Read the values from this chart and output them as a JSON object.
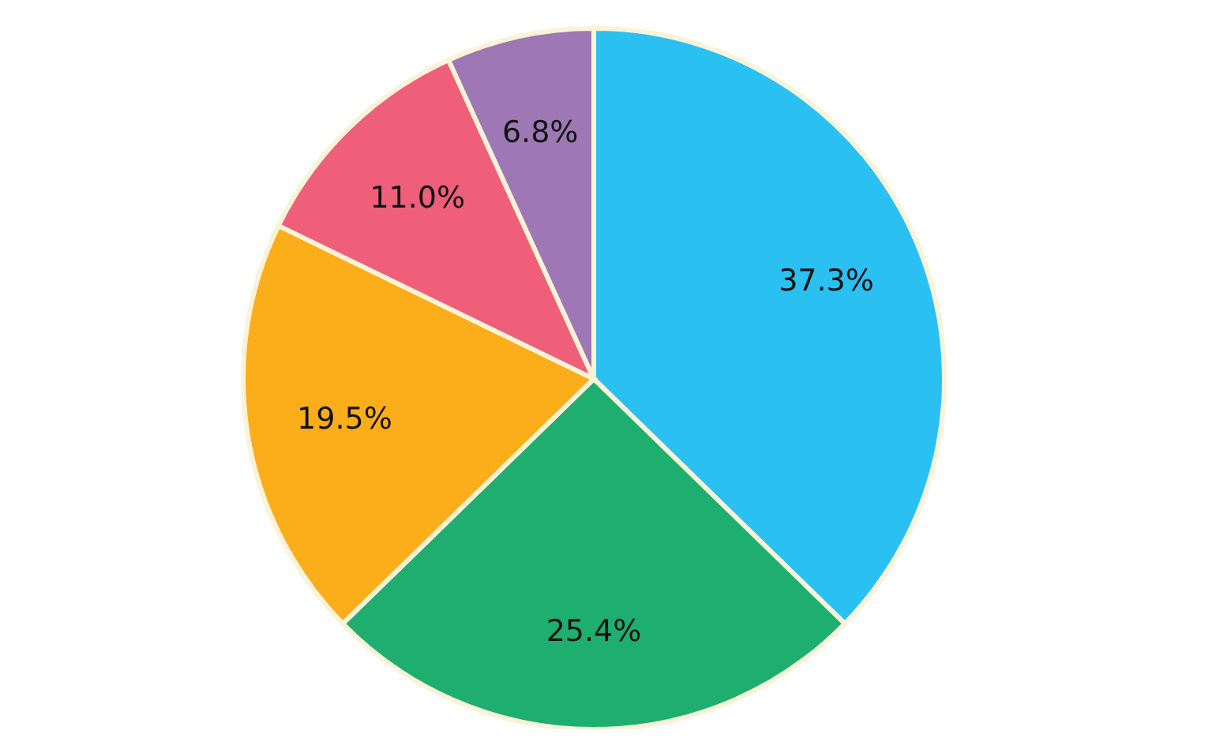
{
  "chart_data": {
    "type": "pie",
    "categories": [
      null,
      null,
      null,
      null,
      null
    ],
    "values": [
      37.3,
      25.4,
      19.5,
      11.0,
      6.8
    ],
    "value_labels": [
      "37.3%",
      "25.4%",
      "19.5%",
      "11.0%",
      "6.8%"
    ],
    "colors": [
      "#2bc0f2",
      "#1eae70",
      "#fcae1a",
      "#ef5f7a",
      "#9e78b5"
    ],
    "legend": false
  }
}
